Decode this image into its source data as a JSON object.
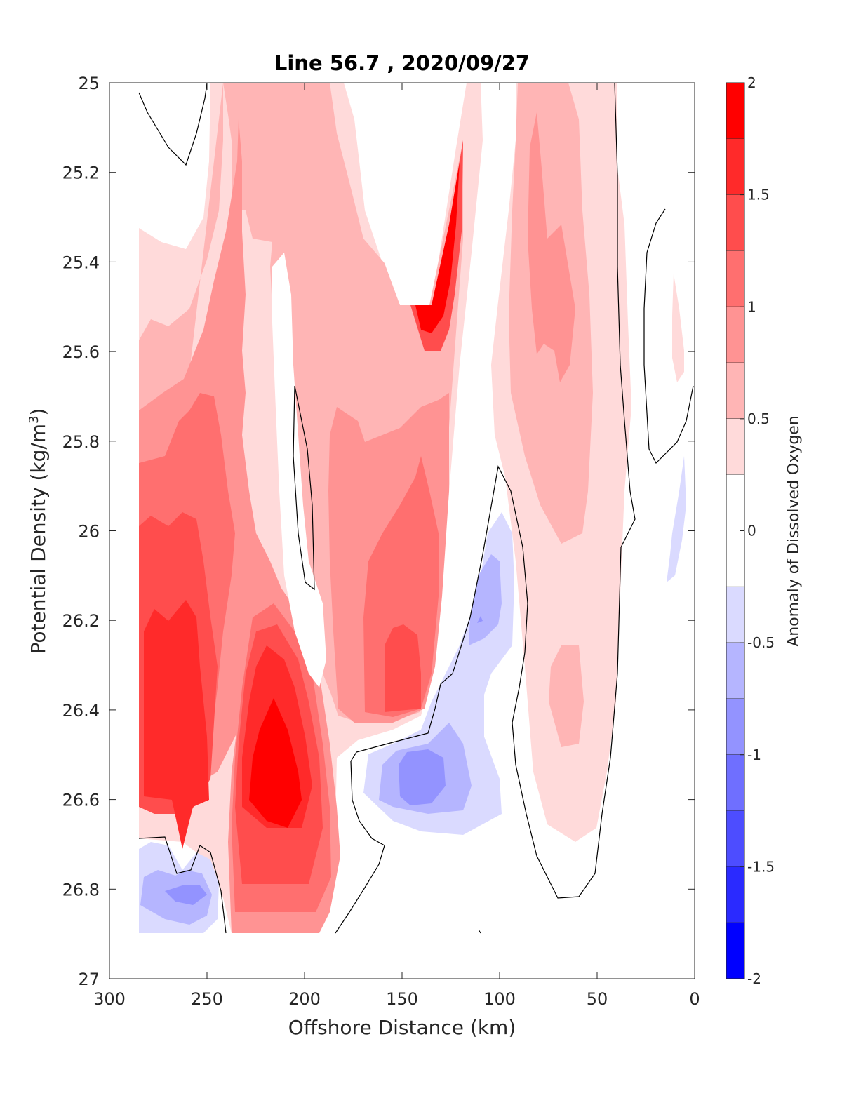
{
  "chart_data": {
    "type": "heatmap",
    "subtype": "filled-contour",
    "title": "Line 56.7 , 2020/09/27",
    "xlabel": "Offshore Distance (km)",
    "ylabel": {
      "base": "Potential Density (kg/m",
      "sup": "3",
      "close": ")"
    },
    "xlim": [
      300,
      0
    ],
    "ylim": [
      25,
      27
    ],
    "y_reversed": true,
    "x_reversed": true,
    "xticks": [
      "300",
      "250",
      "200",
      "150",
      "100",
      "50",
      "0"
    ],
    "yticks": [
      "25",
      "25.2",
      "25.4",
      "25.6",
      "25.8",
      "26",
      "26.2",
      "26.4",
      "26.6",
      "26.8",
      "27"
    ],
    "colorbar": {
      "label": "Anomaly of Dissolved Oxygen",
      "range": [
        -2,
        2
      ],
      "ticks": [
        "2",
        "1.5",
        "1",
        "0.5",
        "0",
        "-0.5",
        "-1",
        "-1.5",
        "-2"
      ],
      "levels": [
        {
          "from": 1.75,
          "to": 2.0,
          "color": "#ff0000"
        },
        {
          "from": 1.5,
          "to": 1.75,
          "color": "#ff2a2a"
        },
        {
          "from": 1.25,
          "to": 1.5,
          "color": "#ff4d4d"
        },
        {
          "from": 1.0,
          "to": 1.25,
          "color": "#ff6f6f"
        },
        {
          "from": 0.75,
          "to": 1.0,
          "color": "#ff9393"
        },
        {
          "from": 0.5,
          "to": 0.75,
          "color": "#ffb5b5"
        },
        {
          "from": 0.25,
          "to": 0.5,
          "color": "#ffdada"
        },
        {
          "from": -0.25,
          "to": 0.25,
          "color": "#ffffff"
        },
        {
          "from": -0.5,
          "to": -0.25,
          "color": "#dadaff"
        },
        {
          "from": -0.75,
          "to": -0.5,
          "color": "#b5b5ff"
        },
        {
          "from": -1.0,
          "to": -0.75,
          "color": "#9393ff"
        },
        {
          "from": -1.25,
          "to": -1.0,
          "color": "#6f6fff"
        },
        {
          "from": -1.5,
          "to": -1.25,
          "color": "#4d4dff"
        },
        {
          "from": -1.75,
          "to": -1.5,
          "color": "#2a2aff"
        },
        {
          "from": -2.0,
          "to": -1.75,
          "color": "#0000ff"
        }
      ]
    },
    "grid": false,
    "regions": [
      {
        "name": "offshore-high-anomaly",
        "x_center": 265,
        "y_center": 26.4,
        "peak": 1.6
      },
      {
        "name": "deep-high-anomaly",
        "x_center": 212,
        "y_center": 26.55,
        "peak": 1.8
      },
      {
        "name": "mid-high-anomaly",
        "x_center": 148,
        "y_center": 26.3,
        "peak": 1.3
      },
      {
        "name": "shallow-peak-anomaly",
        "x_center": 126,
        "y_center": 25.45,
        "peak": 1.8
      },
      {
        "name": "nearshore-high-anomaly",
        "x_center": 75,
        "y_center": 25.5,
        "peak": 0.9
      },
      {
        "name": "deep-low-anomaly-west",
        "x_center": 260,
        "y_center": 26.8,
        "peak": -0.9
      },
      {
        "name": "deep-low-anomaly-mid",
        "x_center": 138,
        "y_center": 26.55,
        "peak": -0.9
      },
      {
        "name": "low-anomaly-tongue",
        "x_center": 108,
        "y_center": 26.15,
        "peak": -0.8
      }
    ]
  }
}
